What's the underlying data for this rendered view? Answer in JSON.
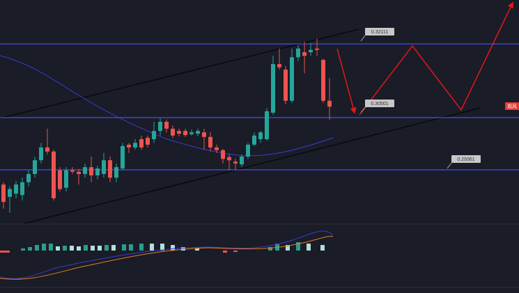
{
  "chart_data": {
    "type": "candlestick",
    "ylim": [
      0.28206,
      0.3307
    ],
    "colors": {
      "up": "#26a69a",
      "down": "#ef5350",
      "level": "#4b4bf0"
    },
    "levels": [
      {
        "value": 0.32111,
        "label": "0.32111"
      },
      {
        "value": 0.30501,
        "label": "0.30501"
      },
      {
        "value": 0.29361,
        "label": "0.29361"
      }
    ],
    "side_label": "观风",
    "open": [
      0.2904,
      0.2877,
      0.2884,
      0.2881,
      0.2909,
      0.2927,
      0.2957,
      0.2985,
      0.2976,
      0.2935,
      0.2897,
      0.2935,
      0.2932,
      0.2927,
      0.2942,
      0.2924,
      0.2927,
      0.2957,
      0.2919,
      0.2939,
      0.2991,
      0.2985,
      0.3003,
      0.3006,
      0.3003,
      0.3021,
      0.3041,
      0.3026,
      0.3021,
      0.3021,
      0.3014,
      0.3015,
      0.3018,
      0.3008,
      0.2985,
      0.2979,
      0.2964,
      0.2954,
      0.2948,
      0.2965,
      0.2991,
      0.3003,
      0.3003,
      0.3061,
      0.3167,
      0.3155,
      0.3087,
      0.3182,
      0.3193,
      0.3193,
      0.3201,
      0.3176,
      0.3087
    ],
    "close": [
      0.2866,
      0.2894,
      0.2904,
      0.2909,
      0.2927,
      0.2957,
      0.2985,
      0.2976,
      0.2874,
      0.2894,
      0.2935,
      0.2932,
      0.2927,
      0.2942,
      0.2924,
      0.2939,
      0.2957,
      0.2919,
      0.2942,
      0.2988,
      0.2985,
      0.2995,
      0.2985,
      0.2991,
      0.3021,
      0.3041,
      0.3026,
      0.3011,
      0.3015,
      0.3012,
      0.3018,
      0.3021,
      0.3008,
      0.2985,
      0.2979,
      0.296,
      0.2957,
      0.295,
      0.2965,
      0.2991,
      0.3011,
      0.3018,
      0.3064,
      0.3167,
      0.316,
      0.3087,
      0.3182,
      0.3201,
      0.3185,
      0.3198,
      0.3198,
      0.3087,
      0.3074
    ],
    "high": [
      0.2909,
      0.29,
      0.2912,
      0.2919,
      0.2935,
      0.2965,
      0.2995,
      0.3026,
      0.298,
      0.2942,
      0.2942,
      0.2942,
      0.2938,
      0.295,
      0.2965,
      0.2945,
      0.2973,
      0.2965,
      0.295,
      0.2995,
      0.2995,
      0.3003,
      0.3011,
      0.3011,
      0.3041,
      0.3049,
      0.3046,
      0.3033,
      0.3026,
      0.3026,
      0.3024,
      0.3026,
      0.3026,
      0.3018,
      0.2991,
      0.2982,
      0.297,
      0.296,
      0.297,
      0.2995,
      0.3018,
      0.3021,
      0.3071,
      0.3185,
      0.3201,
      0.3163,
      0.3201,
      0.3208,
      0.3216,
      0.3213,
      0.3223,
      0.3179,
      0.3137
    ],
    "low": [
      0.2851,
      0.2842,
      0.2874,
      0.2869,
      0.29,
      0.2919,
      0.295,
      0.297,
      0.2869,
      0.2889,
      0.2889,
      0.2927,
      0.2904,
      0.2919,
      0.2909,
      0.2915,
      0.2919,
      0.2909,
      0.2909,
      0.2935,
      0.2973,
      0.298,
      0.298,
      0.2985,
      0.2995,
      0.3011,
      0.3018,
      0.3006,
      0.3009,
      0.3008,
      0.3011,
      0.3009,
      0.298,
      0.2976,
      0.2973,
      0.295,
      0.2935,
      0.2935,
      0.2942,
      0.296,
      0.2988,
      0.2995,
      0.3,
      0.3056,
      0.3155,
      0.3079,
      0.3082,
      0.3173,
      0.3147,
      0.3185,
      0.3185,
      0.3082,
      0.3046
    ]
  }
}
